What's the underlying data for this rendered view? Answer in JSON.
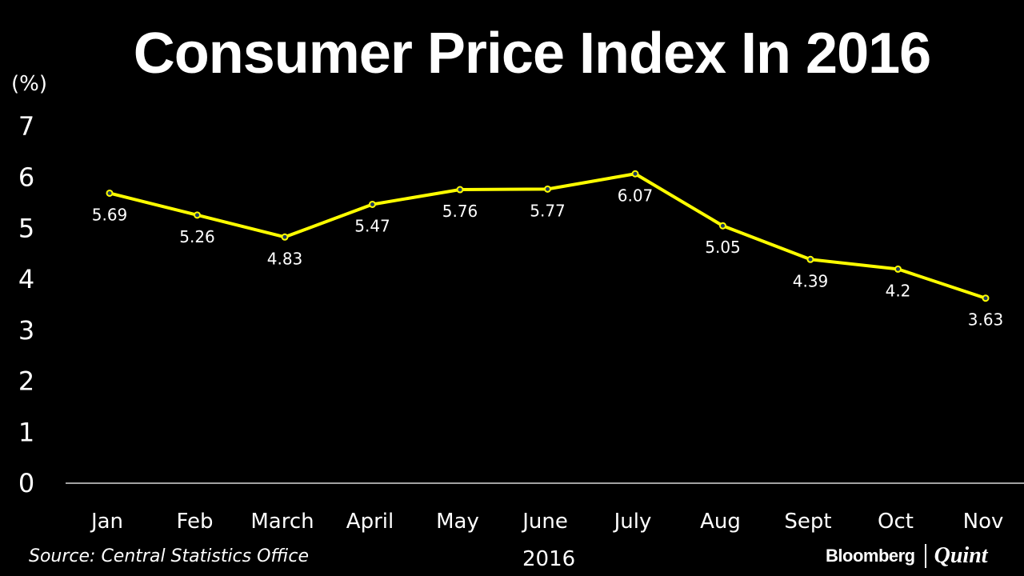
{
  "chart_data": {
    "type": "line",
    "title": "Consumer Price Index In 2016",
    "ylabel": "(%)",
    "xlabel": "2016",
    "categories": [
      "Jan",
      "Feb",
      "March",
      "April",
      "May",
      "June",
      "July",
      "Aug",
      "Sept",
      "Oct",
      "Nov"
    ],
    "series": [
      {
        "values": [
          5.69,
          5.26,
          4.83,
          5.47,
          5.76,
          5.77,
          6.07,
          5.05,
          4.39,
          4.2,
          3.63
        ],
        "labels": [
          "5.69",
          "5.26",
          "4.83",
          "5.47",
          "5.76",
          "5.77",
          "6.07",
          "5.05",
          "4.39",
          "4.2",
          "3.63"
        ],
        "color": "#ffff00"
      }
    ],
    "ylim": [
      0,
      7
    ],
    "yticks": [
      "0",
      "1",
      "2",
      "3",
      "4",
      "5",
      "6",
      "7"
    ],
    "grid": false,
    "source": "Source: Central Statistics Office"
  },
  "branding": {
    "left": "Bloomberg",
    "right": "Quint"
  }
}
